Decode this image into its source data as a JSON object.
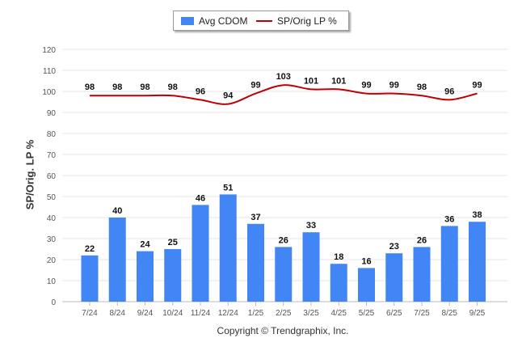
{
  "chart_data": {
    "type": "bar",
    "categories": [
      "7/24",
      "8/24",
      "9/24",
      "10/24",
      "11/24",
      "12/24",
      "1/25",
      "2/25",
      "3/25",
      "4/25",
      "5/25",
      "6/25",
      "7/25",
      "8/25",
      "9/25"
    ],
    "series": [
      {
        "name": "Avg CDOM",
        "type": "bar",
        "values": [
          22,
          40,
          24,
          25,
          46,
          51,
          37,
          26,
          33,
          18,
          16,
          23,
          26,
          36,
          38
        ]
      },
      {
        "name": "SP/Orig LP %",
        "type": "line",
        "values": [
          98,
          98,
          98,
          98,
          96,
          94,
          99,
          103,
          101,
          101,
          99,
          99,
          98,
          96,
          99
        ]
      }
    ],
    "ylabel": "SP/Orig. LP %",
    "ylim": [
      0,
      120
    ],
    "yticks": [
      0,
      10,
      20,
      30,
      40,
      50,
      60,
      70,
      80,
      90,
      100,
      110,
      120
    ],
    "grid": true,
    "legend_position": "top-center",
    "colors": {
      "bar": "#4285f4",
      "line": "#c00000",
      "grid": "#e6e6e6",
      "axis_text": "#555555"
    }
  },
  "copyright": "Copyright © Trendgraphix, Inc."
}
